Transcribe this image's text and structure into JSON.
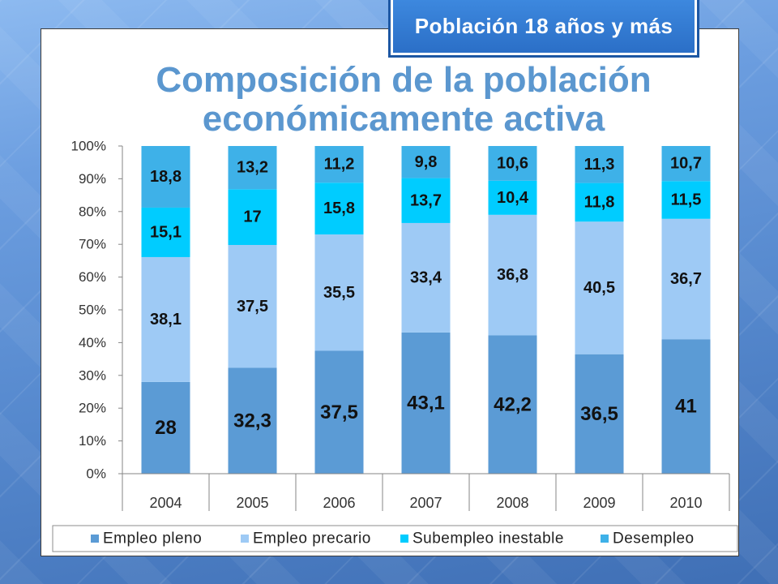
{
  "header_tab": {
    "label": "Población 18 años y más"
  },
  "chart_data": {
    "type": "bar",
    "stacked": "percent",
    "title": "Composición de la población económicamente activa",
    "categories": [
      "2004",
      "2005",
      "2006",
      "2007",
      "2008",
      "2009",
      "2010"
    ],
    "ylim": [
      0,
      100
    ],
    "yticks": [
      0,
      10,
      20,
      30,
      40,
      50,
      60,
      70,
      80,
      90,
      100
    ],
    "ytick_labels": [
      "0%",
      "10%",
      "20%",
      "30%",
      "40%",
      "50%",
      "60%",
      "70%",
      "80%",
      "90%",
      "100%"
    ],
    "grid": false,
    "legend": "bottom",
    "series": [
      {
        "name": "Empleo pleno",
        "color": "#5b9bd5",
        "values": [
          28,
          32.3,
          37.5,
          43.1,
          42.2,
          36.5,
          41
        ],
        "labels": [
          "28",
          "32,3",
          "37,5",
          "43,1",
          "42,2",
          "36,5",
          "41"
        ]
      },
      {
        "name": "Empleo precario",
        "color": "#9ecaf5",
        "values": [
          38.1,
          37.5,
          35.5,
          33.4,
          36.8,
          40.5,
          36.7
        ],
        "labels": [
          "38,1",
          "37,5",
          "35,5",
          "33,4",
          "36,8",
          "40,5",
          "36,7"
        ]
      },
      {
        "name": "Subempleo inestable",
        "color": "#00ccff",
        "values": [
          15.1,
          17,
          15.8,
          13.7,
          10.4,
          11.8,
          11.5
        ],
        "labels": [
          "15,1",
          "17",
          "15,8",
          "13,7",
          "10,4",
          "11,8",
          "11,5"
        ]
      },
      {
        "name": "Desempleo",
        "color": "#3eb1e8",
        "values": [
          18.8,
          13.2,
          11.2,
          9.8,
          10.6,
          11.3,
          10.7
        ],
        "labels": [
          "18,8",
          "13,2",
          "11,2",
          "9,8",
          "10,6",
          "11,3",
          "10,7"
        ]
      }
    ]
  }
}
